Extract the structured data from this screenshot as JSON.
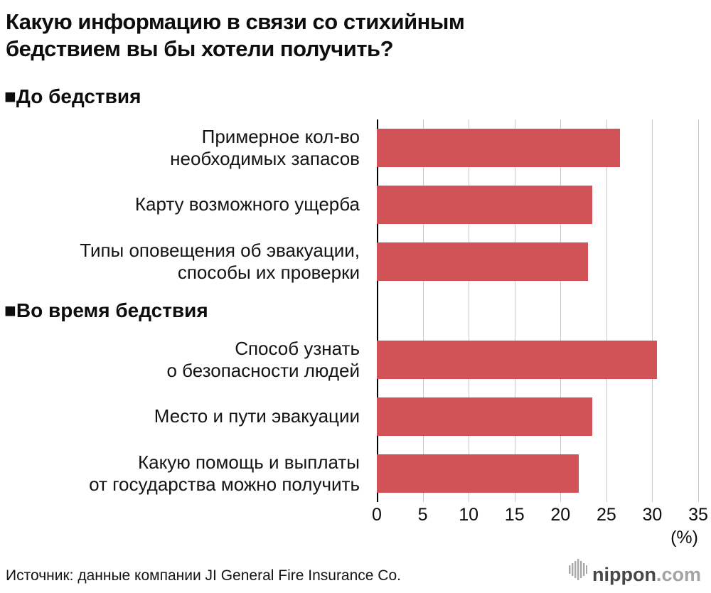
{
  "title_lines": [
    "Какую информацию в связи со стихийным",
    "бедствием вы бы хотели получить?"
  ],
  "chart_data": {
    "type": "bar",
    "orientation": "horizontal",
    "title": "Какую информацию в связи со стихийным бедствием вы бы хотели получить?",
    "unit": "(%)",
    "xlim": [
      0,
      35
    ],
    "x_ticks": [
      0,
      5,
      10,
      15,
      20,
      25,
      30,
      35
    ],
    "grid": true,
    "bar_color": "#d25357",
    "groups": [
      {
        "header": "■До бедствия",
        "items": [
          {
            "label_lines": [
              "Примерное кол-во",
              "необходимых запасов"
            ],
            "value": 26.5
          },
          {
            "label_lines": [
              "Карту возможного ущерба"
            ],
            "value": 23.5
          },
          {
            "label_lines": [
              "Типы оповещения об эвакуации,",
              "способы их проверки"
            ],
            "value": 23
          }
        ]
      },
      {
        "header": "■Во время бедствия",
        "items": [
          {
            "label_lines": [
              "Способ узнать",
              "о безопасности людей"
            ],
            "value": 30.5
          },
          {
            "label_lines": [
              "Место и пути эвакуации"
            ],
            "value": 23.5
          },
          {
            "label_lines": [
              "Какую помощь и выплаты",
              "от государства можно получить"
            ],
            "value": 22
          }
        ]
      }
    ]
  },
  "footer": {
    "source": "Источник: данные компании JI General Fire Insurance Co.",
    "logo_dark": "nippon",
    "logo_gray": ".com"
  }
}
